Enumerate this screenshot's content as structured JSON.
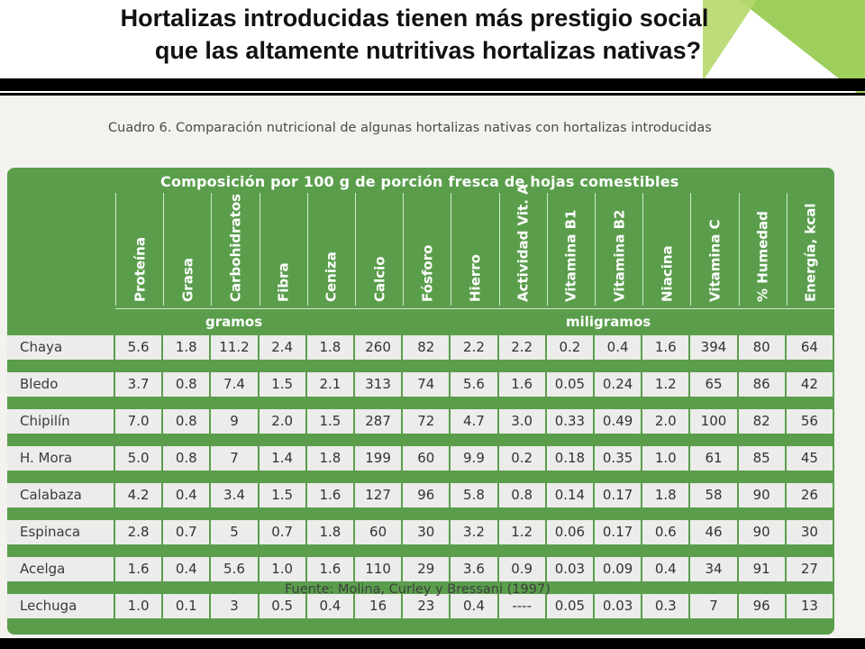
{
  "slide": {
    "title_line1": "Hortalizas introducidas tienen más prestigio social",
    "title_line2": "que las altamente nutritivas hortalizas nativas?"
  },
  "document": {
    "caption": "Cuadro 6. Comparación nutricional de algunas hortalizas nativas con hortalizas introducidas",
    "source": "Fuente: Molina, Curley y Bressani (1997)",
    "table": {
      "heading": "Composición por 100 g de porción fresca de hojas comestibles",
      "columns": [
        "Proteína",
        "Grasa",
        "Carbohidratos",
        "Fibra",
        "Ceniza",
        "Calcio",
        "Fósforo",
        "Hierro",
        "Actividad Vit. A",
        "Vitamina B1",
        "Vitamina B2",
        "Niacina",
        "Vitamina C",
        "% Humedad",
        "Energía, kcal"
      ],
      "unit_left": "gramos",
      "unit_right": "miligramos",
      "rows": [
        {
          "name": "Chaya",
          "values": [
            "5.6",
            "1.8",
            "11.2",
            "2.4",
            "1.8",
            "260",
            "82",
            "2.2",
            "2.2",
            "0.2",
            "0.4",
            "1.6",
            "394",
            "80",
            "64"
          ]
        },
        {
          "name": "Bledo",
          "values": [
            "3.7",
            "0.8",
            "7.4",
            "1.5",
            "2.1",
            "313",
            "74",
            "5.6",
            "1.6",
            "0.05",
            "0.24",
            "1.2",
            "65",
            "86",
            "42"
          ]
        },
        {
          "name": "Chipilín",
          "values": [
            "7.0",
            "0.8",
            "9",
            "2.0",
            "1.5",
            "287",
            "72",
            "4.7",
            "3.0",
            "0.33",
            "0.49",
            "2.0",
            "100",
            "82",
            "56"
          ]
        },
        {
          "name": "H. Mora",
          "values": [
            "5.0",
            "0.8",
            "7",
            "1.4",
            "1.8",
            "199",
            "60",
            "9.9",
            "0.2",
            "0.18",
            "0.35",
            "1.0",
            "61",
            "85",
            "45"
          ]
        },
        {
          "name": "Calabaza",
          "values": [
            "4.2",
            "0.4",
            "3.4",
            "1.5",
            "1.6",
            "127",
            "96",
            "5.8",
            "0.8",
            "0.14",
            "0.17",
            "1.8",
            "58",
            "90",
            "26"
          ]
        },
        {
          "name": "Espinaca",
          "values": [
            "2.8",
            "0.7",
            "5",
            "0.7",
            "1.8",
            "60",
            "30",
            "3.2",
            "1.2",
            "0.06",
            "0.17",
            "0.6",
            "46",
            "90",
            "30"
          ]
        },
        {
          "name": "Acelga",
          "values": [
            "1.6",
            "0.4",
            "5.6",
            "1.0",
            "1.6",
            "110",
            "29",
            "3.6",
            "0.9",
            "0.03",
            "0.09",
            "0.4",
            "34",
            "91",
            "27"
          ]
        },
        {
          "name": "Lechuga",
          "values": [
            "1.0",
            "0.1",
            "3",
            "0.5",
            "0.4",
            "16",
            "23",
            "0.4",
            "----",
            "0.05",
            "0.03",
            "0.3",
            "7",
            "96",
            "13"
          ]
        }
      ]
    }
  },
  "colors": {
    "table_green": "#5a9e4c",
    "cell_bg": "#ececea",
    "accent_green": "#8dc63f"
  }
}
